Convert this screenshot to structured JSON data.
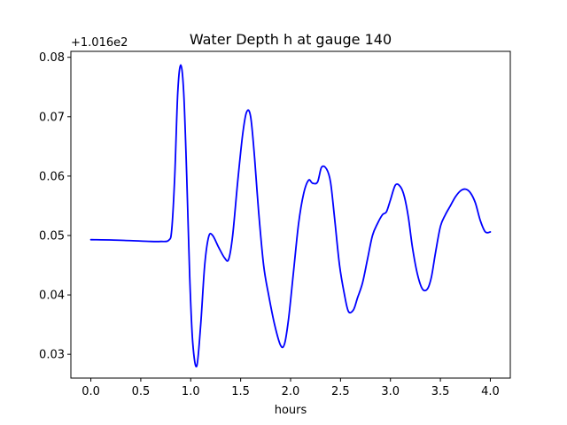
{
  "chart_data": {
    "type": "line",
    "title": "Water Depth h at gauge 140",
    "xlabel": "hours",
    "ylabel": "",
    "y_offset_label": "+1.016e2",
    "xlim": [
      -0.2,
      4.2
    ],
    "ylim": [
      0.026,
      0.081
    ],
    "xticks": [
      0.0,
      0.5,
      1.0,
      1.5,
      2.0,
      2.5,
      3.0,
      3.5,
      4.0
    ],
    "xtick_labels": [
      "0.0",
      "0.5",
      "1.0",
      "1.5",
      "2.0",
      "2.5",
      "3.0",
      "3.5",
      "4.0"
    ],
    "yticks": [
      0.03,
      0.04,
      0.05,
      0.06,
      0.07,
      0.08
    ],
    "ytick_labels": [
      "0.03",
      "0.04",
      "0.05",
      "0.06",
      "0.07",
      "0.08"
    ],
    "grid": false,
    "legend": "none",
    "series": [
      {
        "color": "#0000ff",
        "x": [
          0.0,
          0.3,
          0.6,
          0.7,
          0.78,
          0.81,
          0.84,
          0.87,
          0.9,
          0.93,
          0.96,
          0.99,
          1.02,
          1.06,
          1.1,
          1.14,
          1.18,
          1.22,
          1.28,
          1.34,
          1.38,
          1.42,
          1.47,
          1.52,
          1.56,
          1.6,
          1.64,
          1.68,
          1.73,
          1.78,
          1.84,
          1.9,
          1.94,
          1.98,
          2.03,
          2.08,
          2.13,
          2.18,
          2.22,
          2.27,
          2.31,
          2.36,
          2.4,
          2.44,
          2.49,
          2.54,
          2.58,
          2.63,
          2.67,
          2.72,
          2.77,
          2.82,
          2.87,
          2.92,
          2.96,
          3.0,
          3.05,
          3.1,
          3.14,
          3.18,
          3.22,
          3.27,
          3.32,
          3.37,
          3.41,
          3.45,
          3.5,
          3.55,
          3.6,
          3.65,
          3.7,
          3.75,
          3.8,
          3.85,
          3.9,
          3.95,
          4.0
        ],
        "y": [
          0.0493,
          0.0492,
          0.049,
          0.049,
          0.0492,
          0.051,
          0.06,
          0.074,
          0.0787,
          0.074,
          0.06,
          0.043,
          0.032,
          0.028,
          0.035,
          0.045,
          0.0498,
          0.05,
          0.048,
          0.0462,
          0.046,
          0.05,
          0.059,
          0.067,
          0.0708,
          0.07,
          0.063,
          0.054,
          0.045,
          0.04,
          0.035,
          0.0315,
          0.0318,
          0.036,
          0.044,
          0.052,
          0.057,
          0.0593,
          0.0588,
          0.059,
          0.0615,
          0.0612,
          0.059,
          0.053,
          0.045,
          0.04,
          0.0372,
          0.0375,
          0.0395,
          0.042,
          0.046,
          0.05,
          0.052,
          0.0535,
          0.054,
          0.056,
          0.0585,
          0.0582,
          0.0565,
          0.053,
          0.048,
          0.0435,
          0.041,
          0.041,
          0.043,
          0.047,
          0.0515,
          0.0535,
          0.055,
          0.0565,
          0.0575,
          0.0578,
          0.0572,
          0.0555,
          0.0525,
          0.0506,
          0.0506
        ]
      }
    ]
  }
}
